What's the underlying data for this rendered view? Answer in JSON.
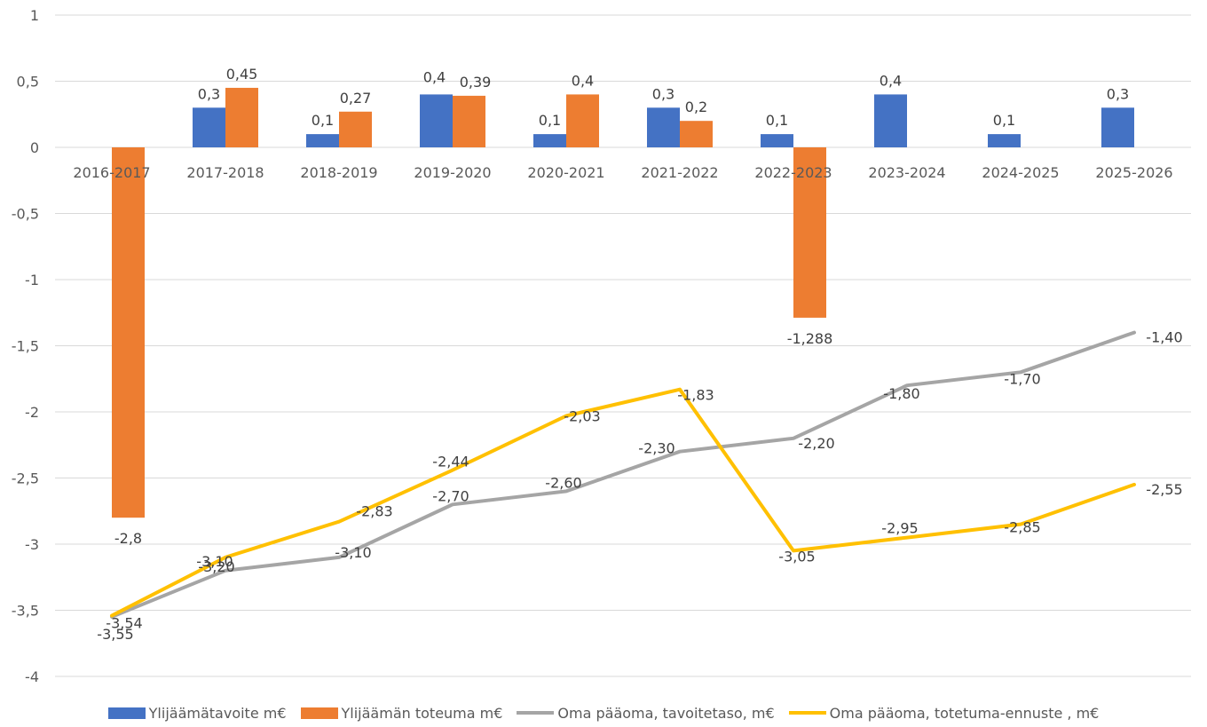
{
  "chart_data": {
    "type": "bar+line",
    "categories": [
      "2016-2017",
      "2017-2018",
      "2018-2019",
      "2019-2020",
      "2020-2021",
      "2021-2022",
      "2022-2023",
      "2023-2024",
      "2024-2025",
      "2025-2026"
    ],
    "ylim": [
      -4,
      1
    ],
    "yticks": [
      1,
      0.5,
      0,
      -0.5,
      -1,
      -1.5,
      -2,
      -2.5,
      -3,
      -3.5,
      -4
    ],
    "ytick_labels": [
      "1",
      "0,5",
      "0",
      "-0,5",
      "-1",
      "-1,5",
      "-2",
      "-2,5",
      "-3",
      "-3,5",
      "-4"
    ],
    "grid": true,
    "legend_position": "bottom",
    "bar_series": [
      {
        "name": "Ylijäämätavoite m€",
        "color": "#4472C4",
        "values": [
          null,
          0.3,
          0.1,
          0.4,
          0.1,
          0.3,
          0.1,
          0.4,
          0.1,
          0.3
        ],
        "labels": [
          "",
          "0,3",
          "0,1",
          "0,4",
          "0,1",
          "0,3",
          "0,1",
          "0,4",
          "0,1",
          "0,3"
        ]
      },
      {
        "name": "Ylijäämän toteuma m€",
        "color": "#ED7D31",
        "values": [
          -2.8,
          0.45,
          0.27,
          0.39,
          0.4,
          0.2,
          -1.288,
          null,
          null,
          null
        ],
        "labels": [
          "-2,8",
          "0,45",
          "0,27",
          "0,39",
          "0,4",
          "0,2",
          "-1,288",
          "",
          "",
          ""
        ]
      }
    ],
    "line_series": [
      {
        "name": "Oma pääoma, tavoitetaso, m€",
        "color": "#A5A5A5",
        "values": [
          -3.55,
          -3.2,
          -3.1,
          -2.7,
          -2.6,
          -2.3,
          -2.2,
          -1.8,
          -1.7,
          -1.4
        ],
        "labels": [
          "-3,55",
          "-3,20",
          "-3,10",
          "-2,70",
          "-2,60",
          "-2,30",
          "-2,20",
          "-1,80",
          "-1,70",
          "-1,40"
        ]
      },
      {
        "name": "Oma pääoma, totetuma-ennuste , m€",
        "color": "#FFC000",
        "values": [
          -3.54,
          -3.1,
          -2.83,
          -2.44,
          -2.03,
          -1.83,
          -3.05,
          -2.95,
          -2.85,
          -2.55
        ],
        "labels": [
          "-3,54",
          "-3,10",
          "-2,83",
          "-2,44",
          "-2,03",
          "-1,83",
          "-3,05",
          "-2,95",
          "-2,85",
          "-2,55"
        ]
      }
    ]
  }
}
